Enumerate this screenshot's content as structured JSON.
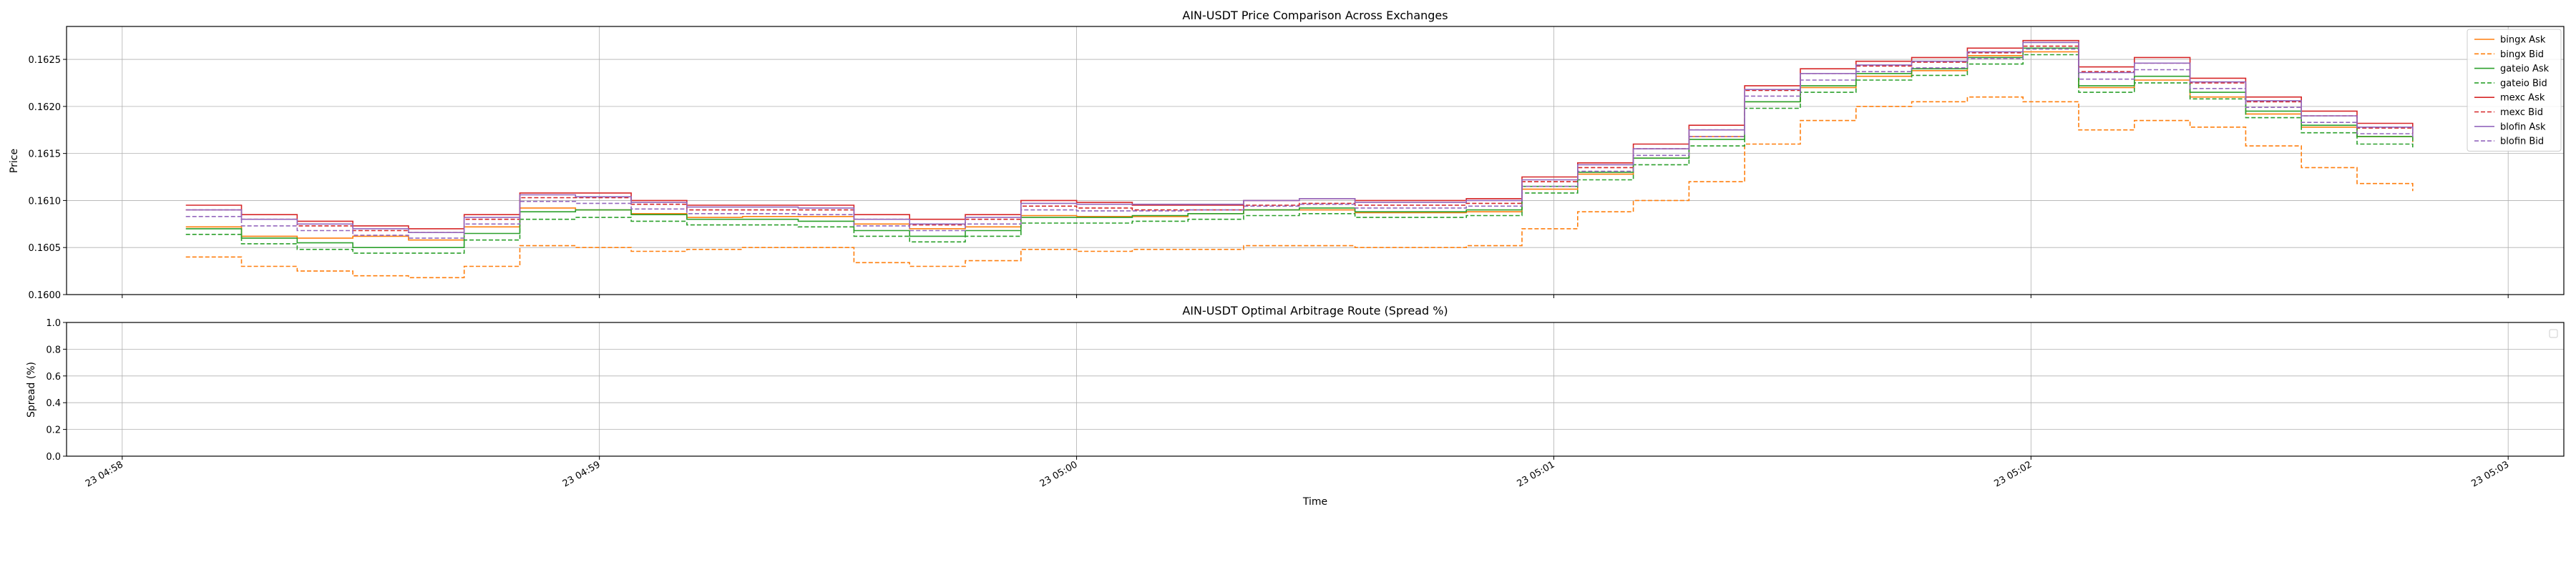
{
  "chart_data": [
    {
      "type": "line",
      "title": "AIN-USDT Price Comparison Across Exchanges",
      "xlabel": "",
      "ylabel": "Price",
      "ylim": [
        0.16,
        0.16285
      ],
      "xlim": [
        "23 04:57:53",
        "23 05:03:07"
      ],
      "grid": true,
      "legend": "upper right",
      "yticks": [
        "0.1600",
        "0.1605",
        "0.1610",
        "0.1615",
        "0.1620",
        "0.1625"
      ],
      "x_ticks": [
        "23 04:58",
        "23 04:59",
        "23 05:00",
        "23 05:01",
        "23 05:02",
        "23 05:03"
      ],
      "x": [
        "04:58:08",
        "04:58:15",
        "04:58:22",
        "04:58:29",
        "04:58:36",
        "04:58:43",
        "04:58:50",
        "04:58:57",
        "04:59:04",
        "04:59:11",
        "04:59:18",
        "04:59:25",
        "04:59:32",
        "04:59:39",
        "04:59:46",
        "04:59:53",
        "05:00:00",
        "05:00:07",
        "05:00:14",
        "05:00:21",
        "05:00:28",
        "05:00:35",
        "05:00:42",
        "05:00:49",
        "05:00:56",
        "05:01:03",
        "05:01:10",
        "05:01:17",
        "05:01:24",
        "05:01:31",
        "05:01:38",
        "05:01:45",
        "05:01:52",
        "05:01:59",
        "05:02:06",
        "05:02:13",
        "05:02:20",
        "05:02:27",
        "05:02:34",
        "05:02:41",
        "05:02:48"
      ],
      "series": [
        {
          "name": "bingx Ask",
          "color": "#ff7f0e",
          "dash": "solid",
          "values": [
            0.16072,
            0.16062,
            0.1606,
            0.16062,
            0.16058,
            0.16072,
            0.16092,
            0.1609,
            0.16086,
            0.16082,
            0.16083,
            0.16083,
            0.16075,
            0.1607,
            0.16072,
            0.16084,
            0.16083,
            0.16083,
            0.16086,
            0.1609,
            0.1609,
            0.16087,
            0.16087,
            0.16088,
            0.16112,
            0.16128,
            0.16145,
            0.16168,
            0.16205,
            0.1622,
            0.16232,
            0.16238,
            0.16254,
            0.16258,
            0.1622,
            0.16228,
            0.1621,
            0.16192,
            0.16178,
            0.16168,
            0.16162
          ]
        },
        {
          "name": "bingx Bid",
          "color": "#ff7f0e",
          "dash": "dashed",
          "values": [
            0.1604,
            0.1603,
            0.16025,
            0.1602,
            0.16018,
            0.1603,
            0.16052,
            0.1605,
            0.16046,
            0.16048,
            0.1605,
            0.1605,
            0.16034,
            0.1603,
            0.16036,
            0.16048,
            0.16046,
            0.16048,
            0.16048,
            0.16052,
            0.16052,
            0.1605,
            0.1605,
            0.16052,
            0.1607,
            0.16088,
            0.161,
            0.1612,
            0.1616,
            0.16185,
            0.162,
            0.16205,
            0.1621,
            0.16205,
            0.16175,
            0.16185,
            0.16178,
            0.16158,
            0.16135,
            0.16118,
            0.1611
          ]
        },
        {
          "name": "gateio Ask",
          "color": "#2ca02c",
          "dash": "solid",
          "values": [
            0.1607,
            0.1606,
            0.16055,
            0.1605,
            0.1605,
            0.16065,
            0.16088,
            0.1609,
            0.16085,
            0.1608,
            0.1608,
            0.16078,
            0.16068,
            0.16062,
            0.16068,
            0.16082,
            0.16082,
            0.16084,
            0.16086,
            0.1609,
            0.16092,
            0.16088,
            0.16088,
            0.1609,
            0.16115,
            0.1613,
            0.16145,
            0.16165,
            0.16205,
            0.16222,
            0.16235,
            0.1624,
            0.16252,
            0.16262,
            0.16222,
            0.16232,
            0.16215,
            0.16195,
            0.1618,
            0.16168,
            0.16163
          ]
        },
        {
          "name": "gateio Bid",
          "color": "#2ca02c",
          "dash": "dashed",
          "values": [
            0.16064,
            0.16054,
            0.16048,
            0.16044,
            0.16044,
            0.16058,
            0.1608,
            0.16082,
            0.16078,
            0.16074,
            0.16074,
            0.16072,
            0.16062,
            0.16056,
            0.16062,
            0.16076,
            0.16076,
            0.16078,
            0.1608,
            0.16084,
            0.16086,
            0.16082,
            0.16082,
            0.16084,
            0.16108,
            0.16122,
            0.16138,
            0.16158,
            0.16198,
            0.16215,
            0.16228,
            0.16233,
            0.16245,
            0.16255,
            0.16215,
            0.16225,
            0.16208,
            0.16188,
            0.16172,
            0.1616,
            0.16155
          ]
        },
        {
          "name": "mexc Ask",
          "color": "#d62728",
          "dash": "solid",
          "values": [
            0.16095,
            0.16085,
            0.16078,
            0.16073,
            0.1607,
            0.16085,
            0.16108,
            0.16108,
            0.161,
            0.16095,
            0.16095,
            0.16095,
            0.16085,
            0.1608,
            0.16085,
            0.161,
            0.16098,
            0.16095,
            0.16095,
            0.161,
            0.16102,
            0.161,
            0.161,
            0.16102,
            0.16125,
            0.1614,
            0.1616,
            0.1618,
            0.16222,
            0.1624,
            0.16248,
            0.16252,
            0.16262,
            0.1627,
            0.16242,
            0.16252,
            0.1623,
            0.1621,
            0.16195,
            0.16182,
            0.16175
          ]
        },
        {
          "name": "mexc Bid",
          "color": "#d62728",
          "dash": "dashed",
          "values": [
            0.1609,
            0.1608,
            0.16073,
            0.16068,
            0.16066,
            0.1608,
            0.16103,
            0.16103,
            0.16096,
            0.1609,
            0.1609,
            0.1609,
            0.1608,
            0.16074,
            0.1608,
            0.16094,
            0.16092,
            0.1609,
            0.1609,
            0.16095,
            0.16097,
            0.16095,
            0.16095,
            0.16097,
            0.1612,
            0.16135,
            0.16155,
            0.16175,
            0.16217,
            0.16235,
            0.16243,
            0.16247,
            0.16257,
            0.16264,
            0.16237,
            0.16246,
            0.16225,
            0.16205,
            0.1619,
            0.16177,
            0.1617
          ]
        },
        {
          "name": "blofin Ask",
          "color": "#9467bd",
          "dash": "solid",
          "values": [
            0.1609,
            0.1608,
            0.16075,
            0.1607,
            0.16066,
            0.16082,
            0.16106,
            0.16104,
            0.16098,
            0.16093,
            0.16093,
            0.16092,
            0.1608,
            0.16075,
            0.16082,
            0.16097,
            0.16096,
            0.16096,
            0.16096,
            0.161,
            0.16102,
            0.16098,
            0.16098,
            0.161,
            0.16122,
            0.16138,
            0.16155,
            0.16175,
            0.16218,
            0.16235,
            0.16244,
            0.16248,
            0.16258,
            0.16268,
            0.16236,
            0.16246,
            0.16226,
            0.16206,
            0.1619,
            0.16178,
            0.16172
          ]
        },
        {
          "name": "blofin Bid",
          "color": "#9467bd",
          "dash": "dashed",
          "values": [
            0.16083,
            0.16073,
            0.16068,
            0.16063,
            0.1606,
            0.16075,
            0.16099,
            0.16097,
            0.16091,
            0.16086,
            0.16086,
            0.16085,
            0.16073,
            0.16068,
            0.16075,
            0.1609,
            0.16089,
            0.16089,
            0.1609,
            0.16094,
            0.16096,
            0.16092,
            0.16092,
            0.16094,
            0.16115,
            0.16131,
            0.16148,
            0.16168,
            0.16211,
            0.16228,
            0.16237,
            0.16241,
            0.16251,
            0.16261,
            0.16229,
            0.16239,
            0.16219,
            0.16199,
            0.16183,
            0.16171,
            0.16165
          ]
        }
      ]
    },
    {
      "type": "line",
      "title": "AIN-USDT Optimal Arbitrage Route (Spread %)",
      "xlabel": "Time",
      "ylabel": "Spread (%)",
      "ylim": [
        0.0,
        1.0
      ],
      "xlim": [
        "23 04:57:53",
        "23 05:03:07"
      ],
      "grid": true,
      "legend": "upper right (empty)",
      "yticks": [
        "0.0",
        "0.2",
        "0.4",
        "0.6",
        "0.8",
        "1.0"
      ],
      "x_ticks": [
        "23 04:58",
        "23 04:59",
        "23 05:00",
        "23 05:01",
        "23 05:02",
        "23 05:03"
      ],
      "series": []
    }
  ]
}
